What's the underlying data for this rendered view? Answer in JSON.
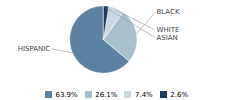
{
  "chart_data": {
    "type": "pie",
    "categories": [
      "HISPANIC",
      "BLACK",
      "WHITE",
      "ASIAN"
    ],
    "values": [
      63.9,
      26.1,
      7.4,
      2.6
    ],
    "value_labels": [
      "63.9%",
      "26.1%",
      "7.4%",
      "2.6%"
    ],
    "colors": [
      "#5b82a0",
      "#a8bfcc",
      "#c8d9e2",
      "#1e3a5f"
    ],
    "legend": "bottom"
  }
}
